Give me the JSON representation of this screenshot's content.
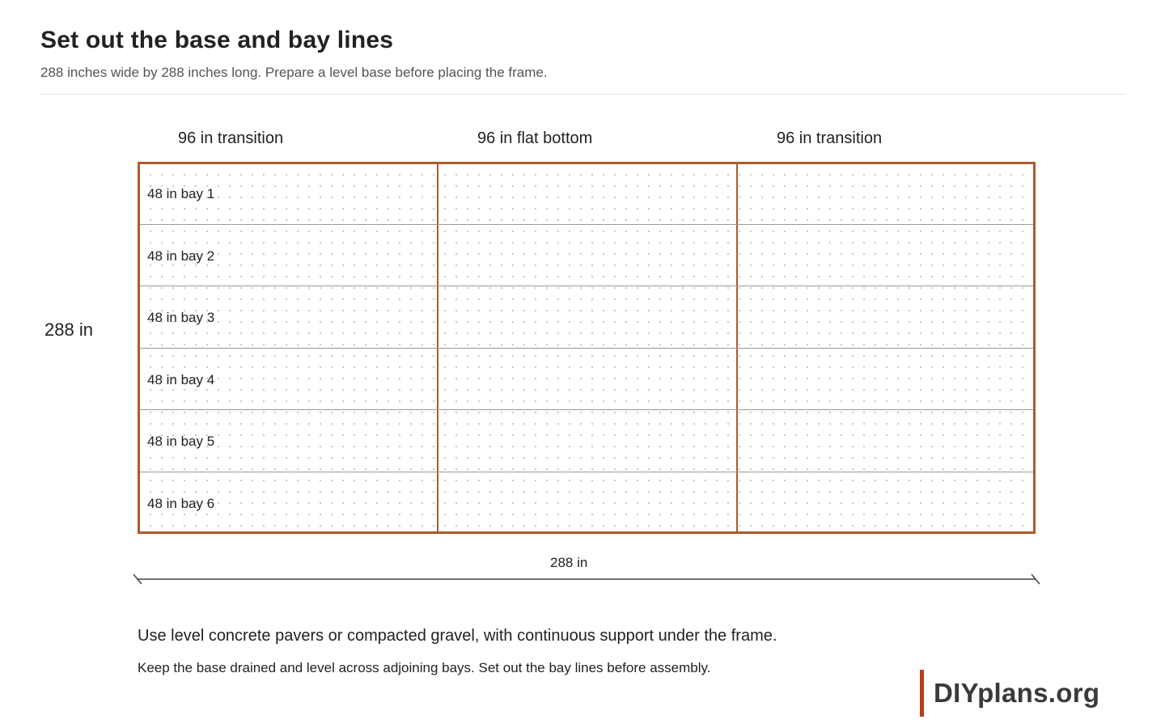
{
  "header": {
    "title": "Set out the base and bay lines",
    "subtitle": "288 inches wide by 288 inches long. Prepare a level base before placing the frame."
  },
  "plan": {
    "zones": [
      {
        "label": "96 in transition"
      },
      {
        "label": "96 in flat bottom"
      },
      {
        "label": "96 in transition"
      }
    ],
    "bays": [
      {
        "label": "48 in bay 1"
      },
      {
        "label": "48 in bay 2"
      },
      {
        "label": "48 in bay 3"
      },
      {
        "label": "48 in bay 4"
      },
      {
        "label": "48 in bay 5"
      },
      {
        "label": "48 in bay 6"
      }
    ],
    "length_label": "288 in",
    "width_label": "288 in"
  },
  "notes": {
    "main": "Use level concrete pavers or compacted gravel, with continuous support under the frame.",
    "sub": "Keep the base drained and level across adjoining bays. Set out the bay lines before assembly."
  },
  "brand": {
    "name": "DIYplans.org"
  },
  "colors": {
    "frame": "#b05a2f",
    "accent_bar": "#b0401e",
    "bay_line": "#9a9a9a"
  }
}
